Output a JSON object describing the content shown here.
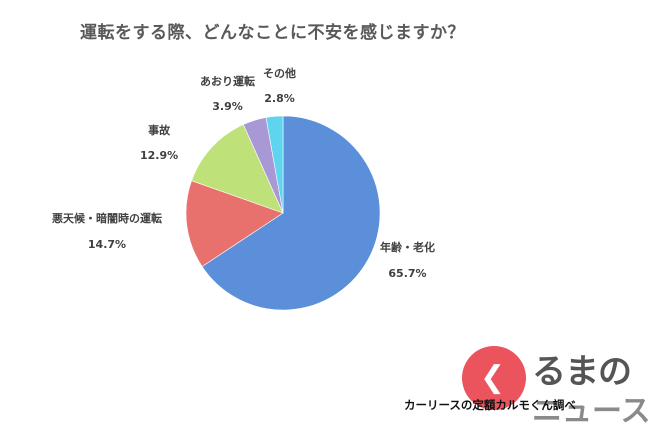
{
  "chart_data": {
    "type": "pie",
    "title": "運転をする際、どんなことに不安を感じますか？",
    "slices": [
      {
        "label": "年齢・老化",
        "value": 65.7,
        "value_label": "65.7%",
        "color": "#5b8fd9"
      },
      {
        "label": "悪天候・暗闇時の運転",
        "value": 14.7,
        "value_label": "14.7%",
        "color": "#e8716d"
      },
      {
        "label": "事故",
        "value": 12.9,
        "value_label": "12.9%",
        "color": "#bfe17a"
      },
      {
        "label": "あおり運転",
        "value": 3.9,
        "value_label": "3.9%",
        "color": "#a899d6"
      },
      {
        "label": "その他",
        "value": 2.8,
        "value_label": "2.8%",
        "color": "#5ed4ee"
      }
    ],
    "start_angle": "12 o'clock",
    "direction": "clockwise",
    "legend": "none"
  },
  "source_credit": "カーリースの定額カルモくん調べ",
  "logo": {
    "text_top": "るまの",
    "text_bottom": "ニュース",
    "icon": "chevron-left-icon",
    "accent": "#e8363f"
  }
}
